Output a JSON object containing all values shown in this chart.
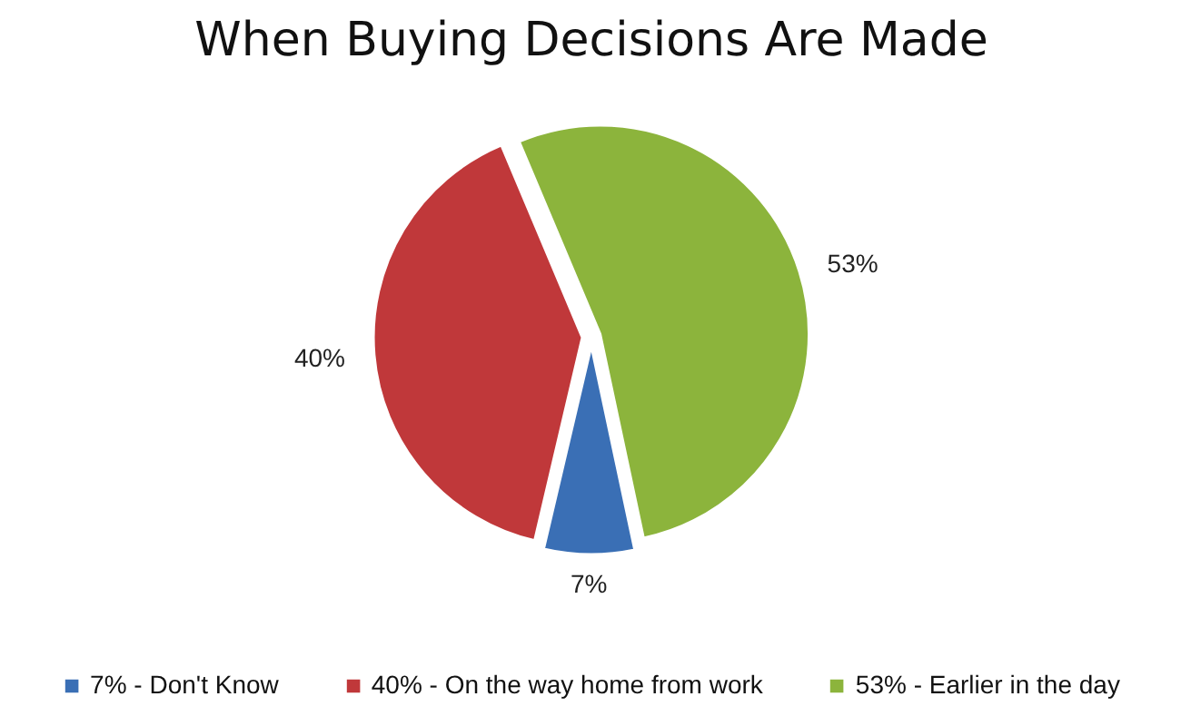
{
  "chart_data": {
    "type": "pie",
    "title": "When Buying Decisions Are Made",
    "categories": [
      "7% - Don't Know",
      "40% - On the way home from work",
      "53% - Earlier in the day"
    ],
    "values": [
      7,
      40,
      53
    ],
    "colors": [
      "#3a6fb5",
      "#c0383a",
      "#8cb43c"
    ],
    "value_labels": [
      "7%",
      "40%",
      "53%"
    ],
    "legend": "bottom"
  }
}
